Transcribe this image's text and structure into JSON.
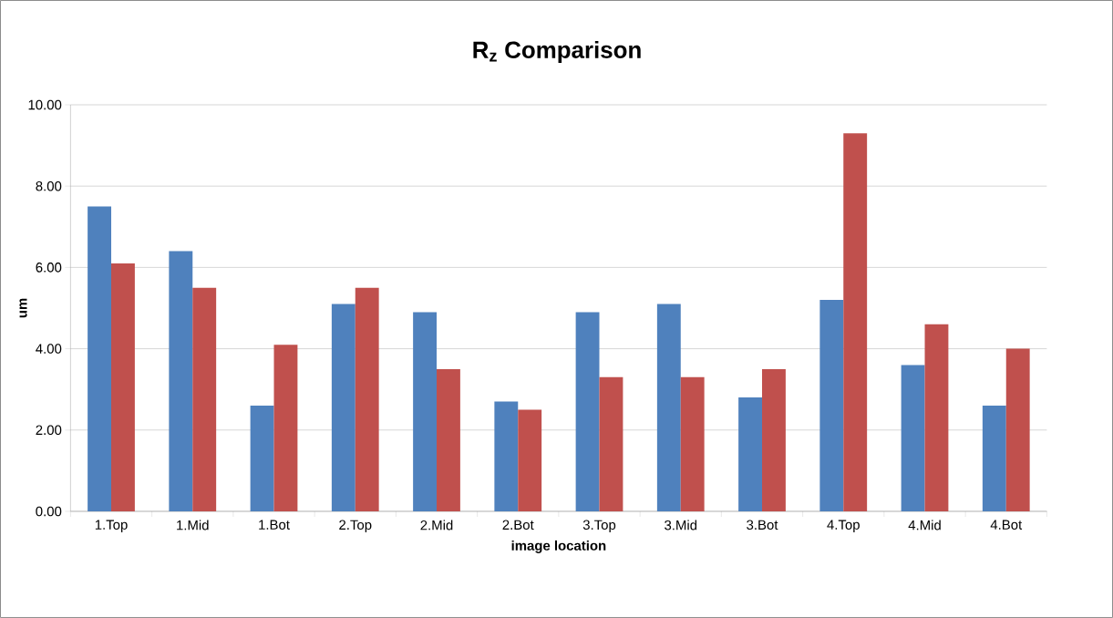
{
  "chart_data": {
    "type": "bar",
    "title": "R$_{z}$ Comparison",
    "xlabel": "image location",
    "ylabel": "um",
    "categories": [
      "1.Top",
      "1.Mid",
      "1.Bot",
      "2.Top",
      "2.Mid",
      "2.Bot",
      "3.Top",
      "3.Mid",
      "3.Bot",
      "4.Top",
      "4.Mid",
      "4.Bot"
    ],
    "series": [
      {
        "color": "#4f81bd",
        "values": [
          7.5,
          6.4,
          2.6,
          5.1,
          4.9,
          2.7,
          4.9,
          5.1,
          2.8,
          5.2,
          3.6,
          2.6
        ]
      },
      {
        "color": "#c0504d",
        "values": [
          6.1,
          5.5,
          4.1,
          5.5,
          3.5,
          2.5,
          3.3,
          3.3,
          3.5,
          9.3,
          4.6,
          4.0
        ]
      }
    ],
    "ylim": [
      0,
      10
    ],
    "yticks": [
      {
        "value": 0,
        "label": "0.00"
      },
      {
        "value": 2,
        "label": "2.00"
      },
      {
        "value": 4,
        "label": "4.00"
      },
      {
        "value": 6,
        "label": "6.00"
      },
      {
        "value": 8,
        "label": "8.00"
      },
      {
        "value": 10,
        "label": "10.00"
      }
    ],
    "grid": "y"
  }
}
